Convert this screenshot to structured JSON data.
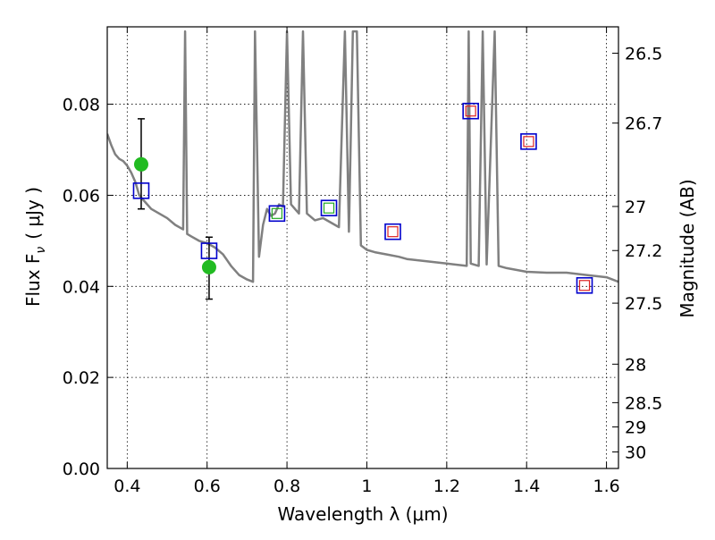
{
  "chart_data": {
    "type": "scatter",
    "xlabel": "Wavelength  λ (μm)",
    "ylabel": "Flux  F",
    "ylabel_sub": "ν",
    "ylabel_unit": "( μJy )",
    "y2label": "Magnitude (AB)",
    "xlim": [
      0.35,
      1.63
    ],
    "ylim": [
      0.0,
      0.097
    ],
    "grid": true,
    "x_ticks": [
      {
        "value": 0.4,
        "label": "0.4"
      },
      {
        "value": 0.6,
        "label": "0.6"
      },
      {
        "value": 0.8,
        "label": "0.8"
      },
      {
        "value": 1.0,
        "label": "1"
      },
      {
        "value": 1.2,
        "label": "1.2"
      },
      {
        "value": 1.4,
        "label": "1.4"
      },
      {
        "value": 1.6,
        "label": "1.6"
      }
    ],
    "y_ticks": [
      {
        "value": 0.0,
        "label": "0.00"
      },
      {
        "value": 0.02,
        "label": "0.02"
      },
      {
        "value": 0.04,
        "label": "0.04"
      },
      {
        "value": 0.06,
        "label": "0.06"
      },
      {
        "value": 0.08,
        "label": "0.08"
      }
    ],
    "y2_ticks": [
      {
        "mag": 26.5,
        "label": "26.5"
      },
      {
        "mag": 26.7,
        "label": "26.7"
      },
      {
        "mag": 27.0,
        "label": "27"
      },
      {
        "mag": 27.2,
        "label": "27.2"
      },
      {
        "mag": 27.5,
        "label": "27.5"
      },
      {
        "mag": 28.0,
        "label": "28"
      },
      {
        "mag": 28.5,
        "label": "28.5"
      },
      {
        "mag": 29.0,
        "label": "29"
      },
      {
        "mag": 30.0,
        "label": "30"
      }
    ],
    "series": [
      {
        "kind": "line",
        "color": "#808080",
        "points": [
          [
            0.35,
            0.0735
          ],
          [
            0.36,
            0.071
          ],
          [
            0.37,
            0.069
          ],
          [
            0.38,
            0.068
          ],
          [
            0.39,
            0.0675
          ],
          [
            0.4,
            0.0665
          ],
          [
            0.41,
            0.065
          ],
          [
            0.42,
            0.063
          ],
          [
            0.43,
            0.06
          ],
          [
            0.44,
            0.059
          ],
          [
            0.46,
            0.057
          ],
          [
            0.48,
            0.056
          ],
          [
            0.5,
            0.055
          ],
          [
            0.52,
            0.0535
          ],
          [
            0.54,
            0.0525
          ],
          [
            0.545,
            0.096
          ],
          [
            0.55,
            0.0515
          ],
          [
            0.56,
            0.051
          ],
          [
            0.58,
            0.05
          ],
          [
            0.6,
            0.0495
          ],
          [
            0.62,
            0.0485
          ],
          [
            0.64,
            0.047
          ],
          [
            0.66,
            0.0445
          ],
          [
            0.68,
            0.0425
          ],
          [
            0.7,
            0.0415
          ],
          [
            0.715,
            0.041
          ],
          [
            0.72,
            0.096
          ],
          [
            0.73,
            0.0465
          ],
          [
            0.74,
            0.0535
          ],
          [
            0.75,
            0.057
          ],
          [
            0.76,
            0.0555
          ],
          [
            0.77,
            0.056
          ],
          [
            0.78,
            0.058
          ],
          [
            0.79,
            0.0575
          ],
          [
            0.8,
            0.096
          ],
          [
            0.81,
            0.058
          ],
          [
            0.82,
            0.057
          ],
          [
            0.83,
            0.056
          ],
          [
            0.84,
            0.096
          ],
          [
            0.85,
            0.056
          ],
          [
            0.87,
            0.0545
          ],
          [
            0.89,
            0.055
          ],
          [
            0.91,
            0.054
          ],
          [
            0.93,
            0.053
          ],
          [
            0.945,
            0.096
          ],
          [
            0.955,
            0.052
          ],
          [
            0.965,
            0.096
          ],
          [
            0.975,
            0.096
          ],
          [
            0.985,
            0.049
          ],
          [
            1.0,
            0.048
          ],
          [
            1.02,
            0.0475
          ],
          [
            1.05,
            0.047
          ],
          [
            1.08,
            0.0465
          ],
          [
            1.1,
            0.046
          ],
          [
            1.15,
            0.0455
          ],
          [
            1.2,
            0.045
          ],
          [
            1.25,
            0.0445
          ],
          [
            1.255,
            0.096
          ],
          [
            1.26,
            0.045
          ],
          [
            1.28,
            0.0445
          ],
          [
            1.29,
            0.096
          ],
          [
            1.3,
            0.0448
          ],
          [
            1.32,
            0.096
          ],
          [
            1.33,
            0.0445
          ],
          [
            1.35,
            0.044
          ],
          [
            1.4,
            0.0432
          ],
          [
            1.45,
            0.043
          ],
          [
            1.5,
            0.043
          ],
          [
            1.55,
            0.0425
          ],
          [
            1.6,
            0.042
          ],
          [
            1.63,
            0.041
          ]
        ]
      },
      {
        "kind": "points",
        "marker": "circle",
        "color": "#22bb22",
        "points": [
          {
            "x": 0.435,
            "y": 0.0668,
            "err_low": 0.057,
            "err_high": 0.0768
          },
          {
            "x": 0.605,
            "y": 0.0442,
            "err_low": 0.0372,
            "err_high": 0.0508
          }
        ]
      },
      {
        "kind": "points",
        "marker": "open-square",
        "color": "#0000cc",
        "points": [
          {
            "x": 0.435,
            "y": 0.061
          },
          {
            "x": 0.605,
            "y": 0.0478
          },
          {
            "x": 0.775,
            "y": 0.056
          },
          {
            "x": 0.905,
            "y": 0.0572
          },
          {
            "x": 1.065,
            "y": 0.052
          },
          {
            "x": 1.26,
            "y": 0.0785
          },
          {
            "x": 1.405,
            "y": 0.0718
          },
          {
            "x": 1.545,
            "y": 0.0402
          }
        ]
      },
      {
        "kind": "points",
        "marker": "small-open-square",
        "color": "#22aa22",
        "points": [
          {
            "x": 0.775,
            "y": 0.056
          },
          {
            "x": 0.905,
            "y": 0.0572
          }
        ]
      },
      {
        "kind": "points",
        "marker": "small-open-square",
        "color": "#dd2222",
        "points": [
          {
            "x": 1.065,
            "y": 0.052
          },
          {
            "x": 1.26,
            "y": 0.0785
          },
          {
            "x": 1.405,
            "y": 0.0718
          },
          {
            "x": 1.545,
            "y": 0.0402
          }
        ]
      }
    ]
  }
}
